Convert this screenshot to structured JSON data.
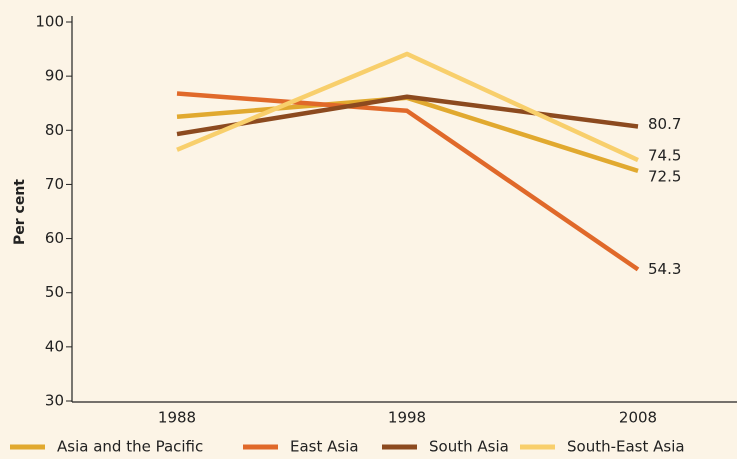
{
  "chart_data": {
    "type": "line",
    "y_label": "Per cent",
    "x": [
      "1988",
      "1998",
      "2008"
    ],
    "series": [
      {
        "name": "Asia and the Pacific",
        "color": "#e1a92f",
        "values": [
          82.5,
          86,
          72.5
        ]
      },
      {
        "name": "East Asia",
        "color": "#e0692a",
        "values": [
          86.8,
          83.6,
          54.3
        ]
      },
      {
        "name": "South Asia",
        "color": "#8c4a1f",
        "values": [
          79.3,
          86.2,
          80.7
        ]
      },
      {
        "name": "South-East Asia",
        "color": "#f8cf6c",
        "values": [
          76.4,
          94.1,
          74.5
        ]
      }
    ],
    "ylim": [
      30,
      100
    ],
    "yticks": [
      30,
      40,
      50,
      60,
      70,
      80,
      90,
      100
    ],
    "legend": "bottom"
  }
}
